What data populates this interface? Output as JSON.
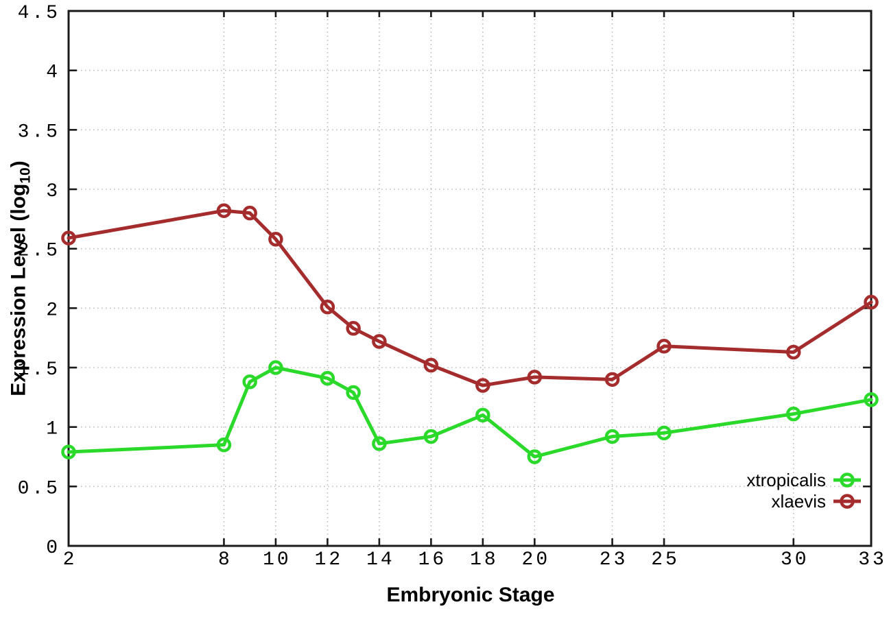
{
  "chart_data": {
    "type": "line",
    "title": "",
    "xlabel": "Embryonic Stage",
    "ylabel": {
      "prefix": "Expression Level (log",
      "subscript": "10",
      "suffix": ")"
    },
    "x": [
      2,
      8,
      9,
      10,
      12,
      13,
      14,
      16,
      18,
      20,
      23,
      25,
      30,
      33
    ],
    "series": [
      {
        "name": "xtropicalis",
        "color": "#2ad92a",
        "values": [
          0.79,
          0.85,
          1.38,
          1.5,
          1.41,
          1.29,
          0.86,
          0.92,
          1.1,
          0.75,
          0.92,
          0.95,
          1.11,
          1.23
        ]
      },
      {
        "name": "xlaevis",
        "color": "#a52c2c",
        "values": [
          2.59,
          2.82,
          2.8,
          2.58,
          2.01,
          1.83,
          1.72,
          1.52,
          1.35,
          1.42,
          1.4,
          1.68,
          1.63,
          2.05
        ]
      }
    ],
    "xlim": [
      2,
      33
    ],
    "ylim": [
      0,
      4.5
    ],
    "x_ticks": [
      2,
      8,
      10,
      12,
      14,
      16,
      18,
      20,
      23,
      25,
      30,
      33
    ],
    "x_tick_labels": [
      "2",
      "8",
      "10",
      "12",
      "14",
      "16",
      "18",
      "20",
      "23",
      "25",
      "30",
      "33"
    ],
    "y_ticks": [
      0,
      0.5,
      1,
      1.5,
      2,
      2.5,
      3,
      3.5,
      4,
      4.5
    ],
    "y_tick_labels": [
      "0",
      "0.5",
      "1",
      "1.5",
      "2",
      "2.5",
      "3",
      "3.5",
      "4",
      "4.5"
    ],
    "grid": true,
    "legend_position": "bottom-right",
    "marker": "open-circle",
    "colors": {
      "frame": "#1a1a1a",
      "grid": "#bdbdbd",
      "background": "#ffffff",
      "text": "#000000"
    }
  }
}
